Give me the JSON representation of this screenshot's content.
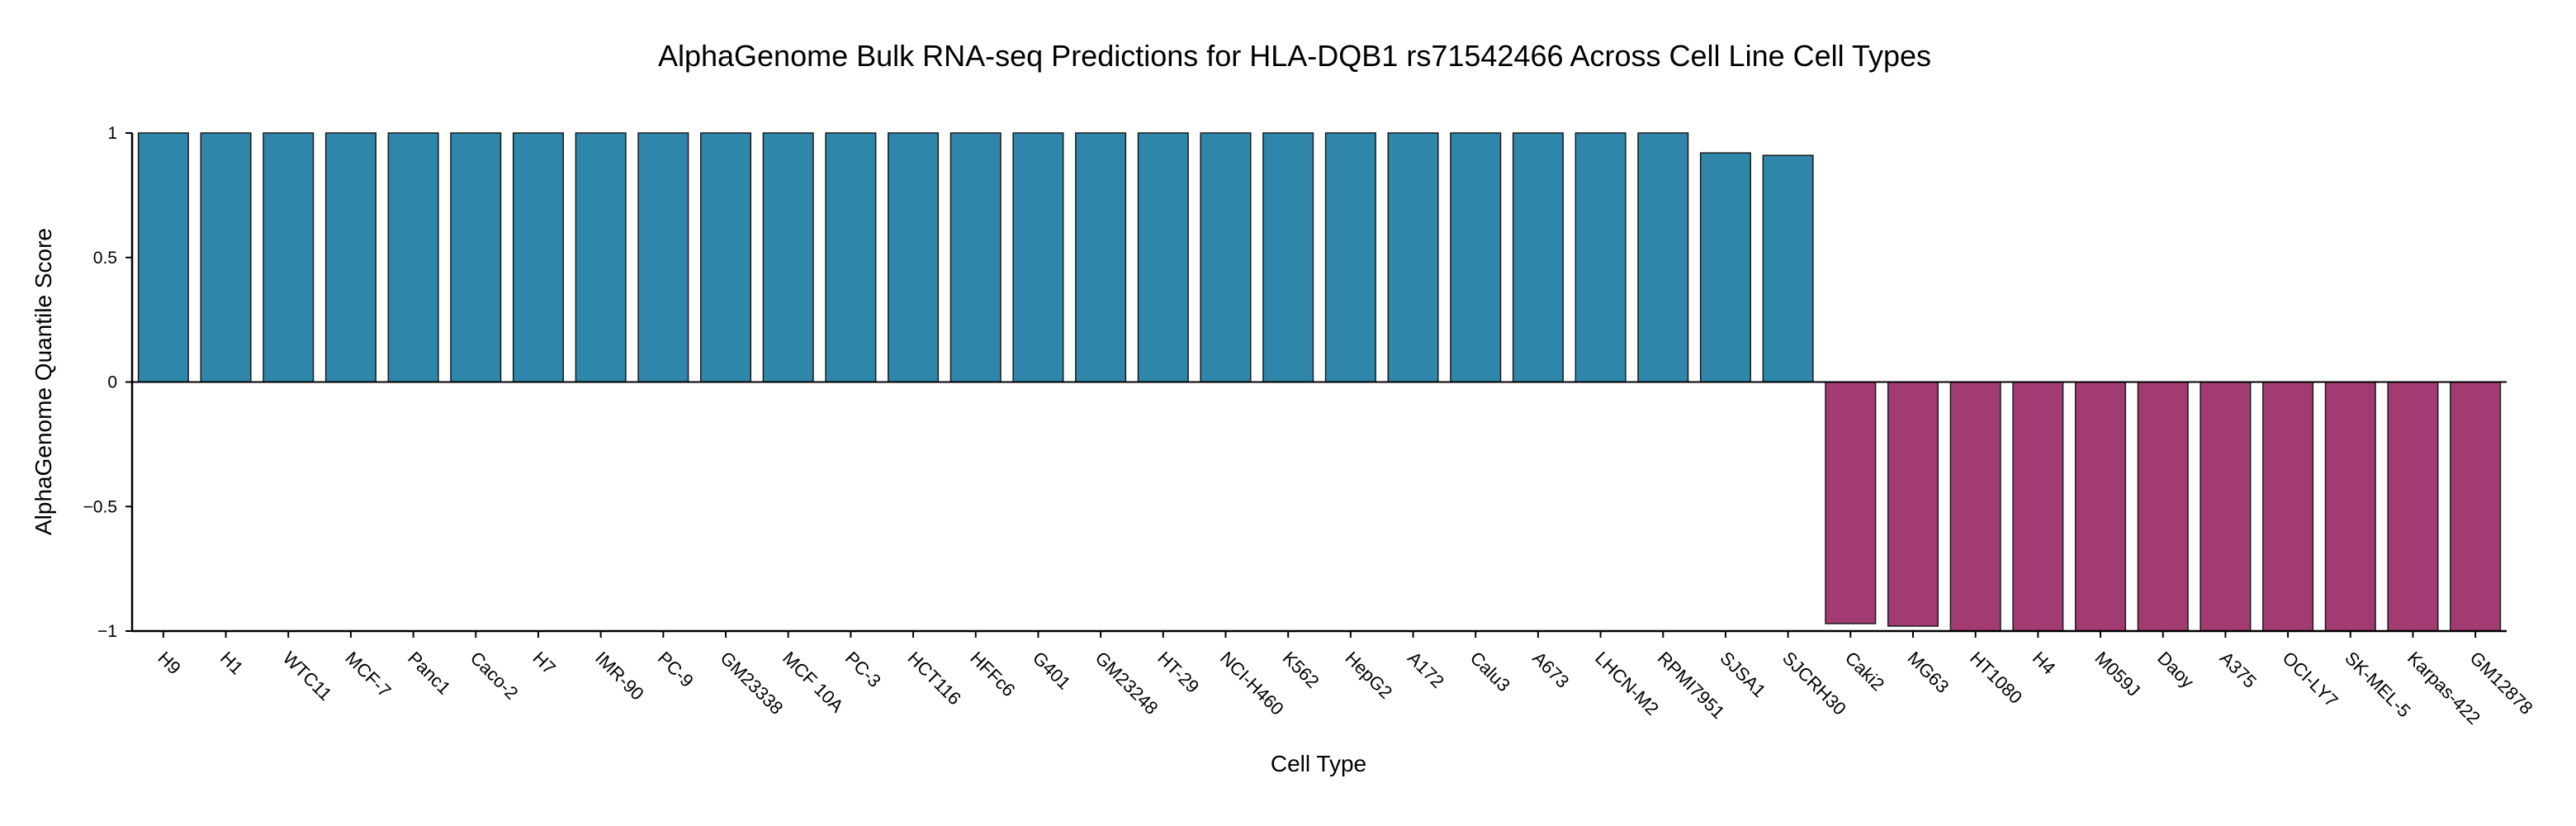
{
  "chart_data": {
    "type": "bar",
    "title": "AlphaGenome Bulk RNA-seq Predictions for HLA-DQB1 rs71542466 Across Cell Line Cell Types",
    "xlabel": "Cell Type",
    "ylabel": "AlphaGenome Quantile Score",
    "ylim": [
      -1,
      1
    ],
    "yticks": [
      1,
      0.5,
      0,
      -0.5,
      -1
    ],
    "ytick_labels": [
      "1",
      "0.5",
      "0",
      "−0.5",
      "−1"
    ],
    "grid": false,
    "legend": "none",
    "colors": {
      "positive": "#2e86ab",
      "negative": "#a23b72",
      "edge": "#1a1a1a"
    },
    "categories": [
      "H9",
      "H1",
      "WTC11",
      "MCF-7",
      "Panc1",
      "Caco-2",
      "H7",
      "IMR-90",
      "PC-9",
      "GM23338",
      "MCF 10A",
      "PC-3",
      "HCT116",
      "HFFc6",
      "G401",
      "GM23248",
      "HT-29",
      "NCI-H460",
      "K562",
      "HepG2",
      "A172",
      "Calu3",
      "A673",
      "LHCN-M2",
      "RPMI7951",
      "SJSA1",
      "SJCRH30",
      "Caki2",
      "MG63",
      "HT1080",
      "H4",
      "M059J",
      "Daoy",
      "A375",
      "OCI-LY7",
      "SK-MEL-5",
      "Karpas-422",
      "GM12878"
    ],
    "values": [
      1,
      1,
      1,
      1,
      1,
      1,
      1,
      1,
      1,
      1,
      1,
      1,
      1,
      1,
      1,
      1,
      1,
      1,
      1,
      1,
      1,
      1,
      1,
      1,
      1,
      0.92,
      0.91,
      -0.97,
      -0.98,
      -1,
      -1,
      -1,
      -1,
      -1,
      -1,
      -1,
      -1,
      -1
    ]
  }
}
